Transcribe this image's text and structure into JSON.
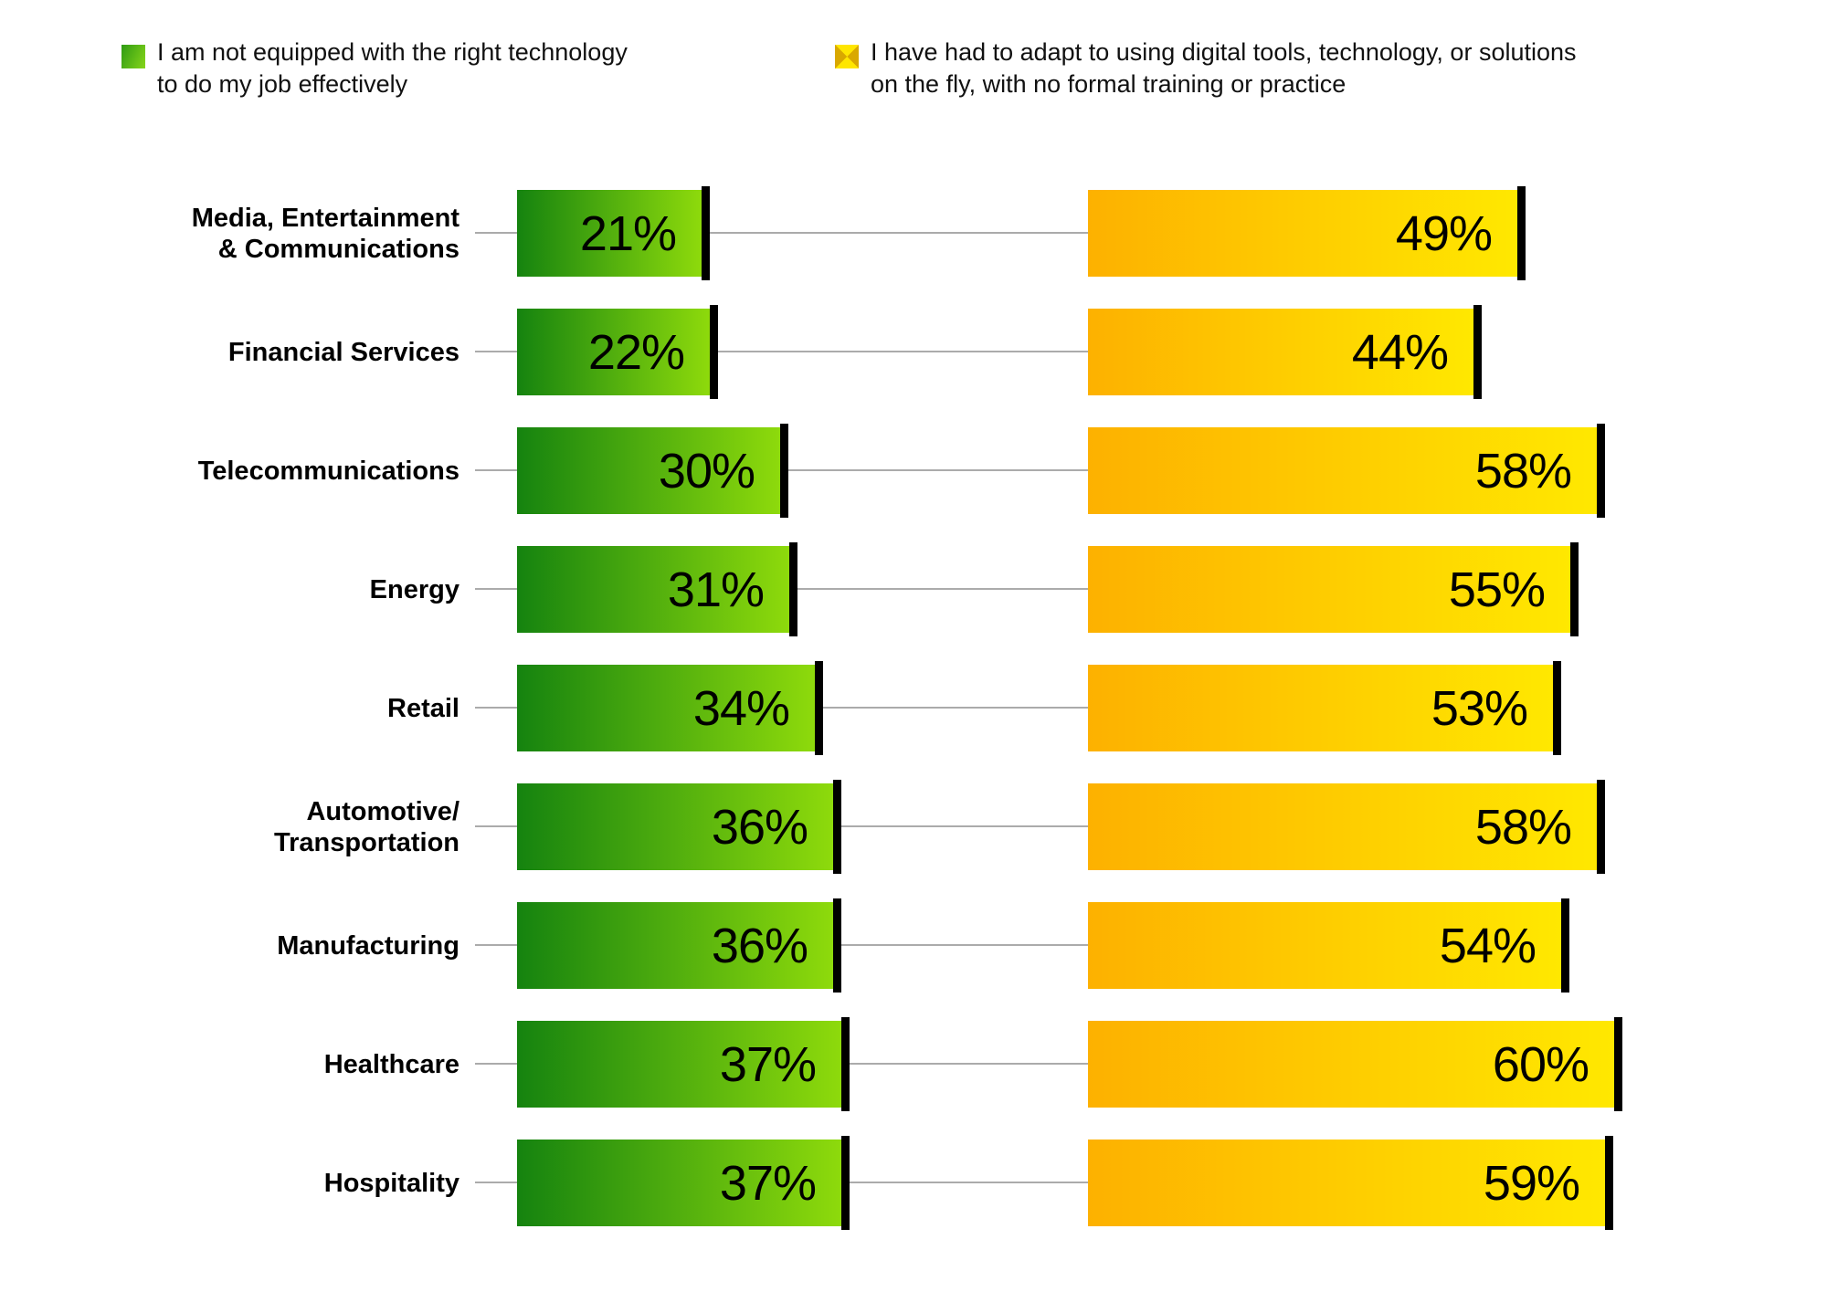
{
  "legend": {
    "items": [
      {
        "id": "not-equipped",
        "label": "I am not equipped with the right technology\nto do my job effectively",
        "swatch": "green"
      },
      {
        "id": "adapt-on-the-fly",
        "label": "I have had to adapt to using digital tools, technology, or solutions\non the fly, with no formal training or practice",
        "swatch": "yellow"
      }
    ]
  },
  "chart_data": {
    "type": "bar",
    "orientation": "horizontal",
    "title": "",
    "xlabel": "",
    "ylabel": "",
    "axis": "none",
    "grid": false,
    "legend_position": "top",
    "data_labels": true,
    "value_suffix": "%",
    "categories": [
      "Media, Entertainment\n& Communications",
      "Financial Services",
      "Telecommunications",
      "Energy",
      "Retail",
      "Automotive/\nTransportation",
      "Manufacturing",
      "Healthcare",
      "Hospitality"
    ],
    "series": [
      {
        "name": "I am not equipped with the right technology to do my job effectively",
        "values": [
          21,
          22,
          30,
          31,
          34,
          36,
          36,
          37,
          37
        ]
      },
      {
        "name": "I have had to adapt to using digital tools, technology, or solutions on the fly, with no formal training or practice",
        "values": [
          49,
          44,
          58,
          55,
          53,
          58,
          54,
          60,
          59
        ]
      }
    ]
  },
  "colors": {
    "green_start": "#15830f",
    "green_end": "#8eda0c",
    "yellow_start": "#fdb100",
    "yellow_end": "#ffe800",
    "endcap": "#000000",
    "connector": "#ababab",
    "text": "#000000"
  }
}
